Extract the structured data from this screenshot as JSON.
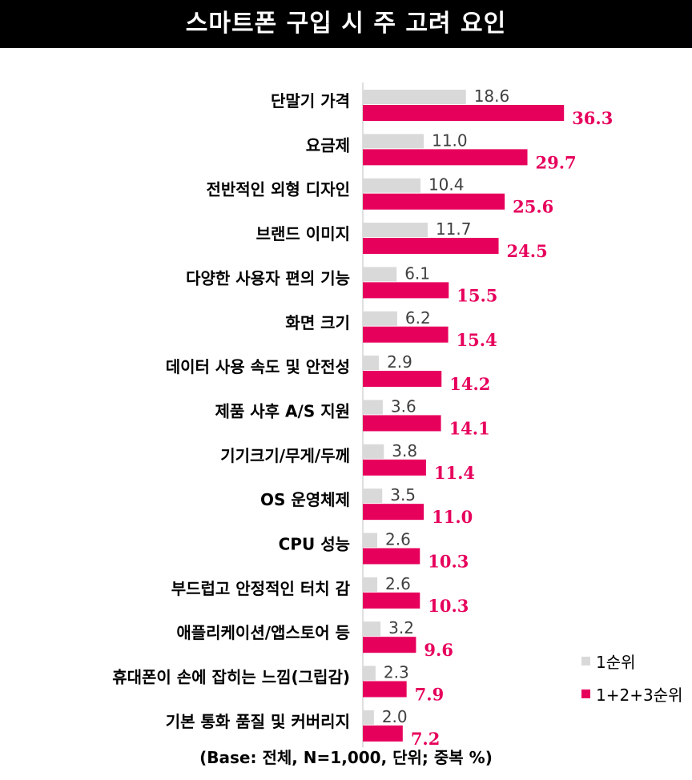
{
  "title": "스마트폰 구입 시 주 고려 요인",
  "footnote": "(Base: 전체, N=1,000, 단위; 중복 %)",
  "colors": {
    "first": "#d9d9d9",
    "total": "#e6005c",
    "title_bg": "#000000",
    "value_first": "#404040"
  },
  "chart_data": {
    "type": "bar",
    "orientation": "horizontal",
    "categories": [
      "단말기 가격",
      "요금제",
      "전반적인 외형 디자인",
      "브랜드 이미지",
      "다양한 사용자 편의 기능",
      "화면 크기",
      "데이터 사용 속도 및 안전성",
      "제품 사후 A/S 지원",
      "기기크기/무게/두께",
      "OS 운영체제",
      "CPU 성능",
      "부드럽고 안정적인 터치 감",
      "애플리케이션/앱스토어 등",
      "휴대폰이 손에 잡히는 느낌(그립감)",
      "기본 통화 품질 및 커버리지"
    ],
    "series": [
      {
        "name": "1순위",
        "values": [
          "18.6",
          "11.0",
          "10.4",
          "11.7",
          "6.1",
          "6.2",
          "2.9",
          "3.6",
          "3.8",
          "3.5",
          "2.6",
          "2.6",
          "3.2",
          "2.3",
          "2.0"
        ]
      },
      {
        "name": "1+2+3순위",
        "values": [
          "36.3",
          "29.7",
          "25.6",
          "24.5",
          "15.5",
          "15.4",
          "14.2",
          "14.1",
          "11.4",
          "11.0",
          "10.3",
          "10.3",
          "9.6",
          "7.9",
          "7.2"
        ]
      }
    ],
    "legend_position": "bottom-right"
  }
}
